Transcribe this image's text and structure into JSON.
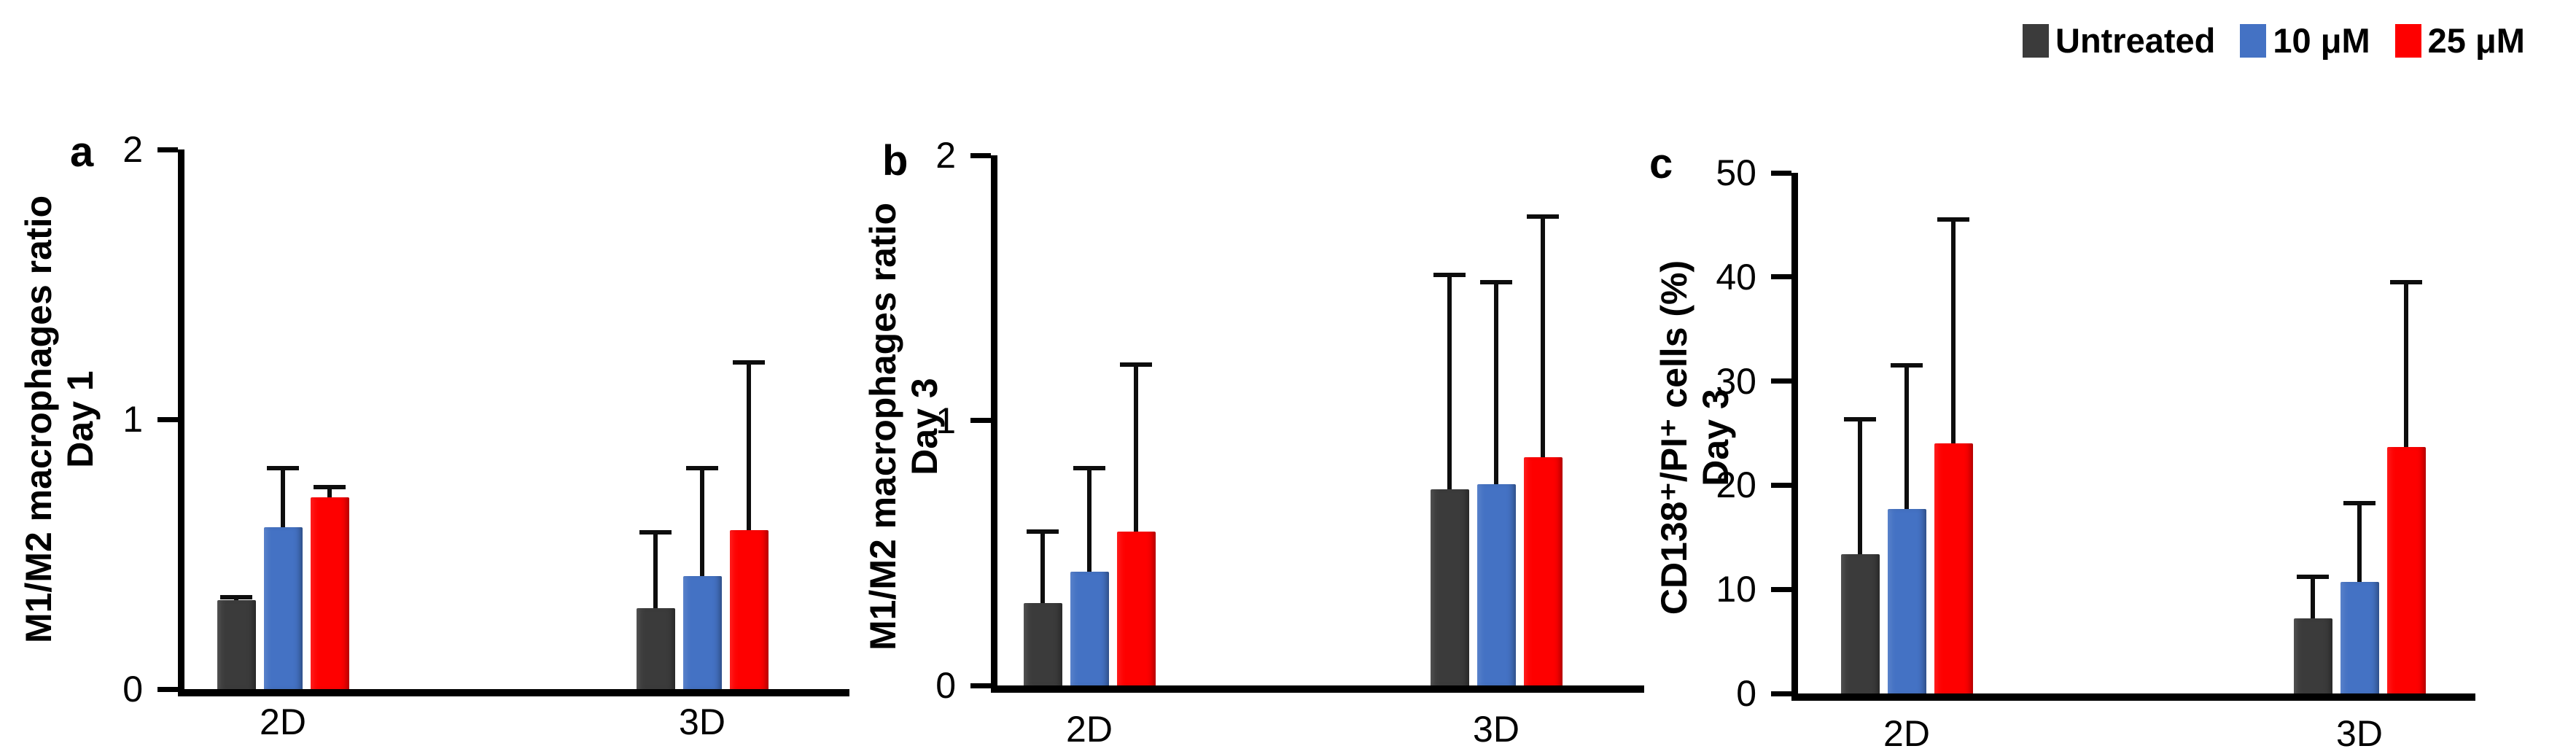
{
  "legend": {
    "position": "top-right",
    "items": [
      {
        "label": "Untreated",
        "color": "#3b3b3b"
      },
      {
        "label": "10 μM",
        "color": "#4472c4"
      },
      {
        "label": "25 μM",
        "color": "#fe0000"
      }
    ]
  },
  "chart_data": [
    {
      "type": "bar",
      "panel": "a",
      "ylabel_line1": "M1/M2 macrophages ratio",
      "ylabel_line2": "Day 1",
      "xlabel": "",
      "categories": [
        "2D",
        "3D"
      ],
      "series": [
        {
          "name": "Untreated",
          "color": "#3b3b3b",
          "values": [
            0.33,
            0.3
          ],
          "err_up": [
            0.01,
            0.28
          ]
        },
        {
          "name": "10 μM",
          "color": "#4472c4",
          "values": [
            0.6,
            0.42
          ],
          "err_up": [
            0.22,
            0.4
          ]
        },
        {
          "name": "25 μM",
          "color": "#fe0000",
          "values": [
            0.71,
            0.59
          ],
          "err_up": [
            0.04,
            0.62
          ]
        }
      ],
      "ylim": [
        0,
        2
      ],
      "yticks": [
        0,
        1,
        2
      ],
      "grid": false,
      "error_bars": "upper only"
    },
    {
      "type": "bar",
      "panel": "b",
      "ylabel_line1": "M1/M2 macrophages ratio",
      "ylabel_line2": "Day 3",
      "xlabel": "",
      "categories": [
        "2D",
        "3D"
      ],
      "series": [
        {
          "name": "Untreated",
          "color": "#3b3b3b",
          "values": [
            0.31,
            0.74
          ],
          "err_up": [
            0.27,
            0.81
          ]
        },
        {
          "name": "10 μM",
          "color": "#4472c4",
          "values": [
            0.43,
            0.76
          ],
          "err_up": [
            0.39,
            0.76
          ]
        },
        {
          "name": "25 μM",
          "color": "#fe0000",
          "values": [
            0.58,
            0.86
          ],
          "err_up": [
            0.63,
            0.91
          ]
        }
      ],
      "ylim": [
        0,
        2
      ],
      "yticks": [
        0,
        1,
        2
      ],
      "grid": false,
      "error_bars": "upper only"
    },
    {
      "type": "bar",
      "panel": "c",
      "ylabel_line1": "CD138⁺/PI⁺ cells (%)",
      "ylabel_line2": "Day 3",
      "xlabel": "",
      "categories": [
        "2D",
        "3D"
      ],
      "series": [
        {
          "name": "Untreated",
          "color": "#3b3b3b",
          "values": [
            13.4,
            7.2
          ],
          "err_up": [
            12.9,
            4.0
          ]
        },
        {
          "name": "10 μM",
          "color": "#4472c4",
          "values": [
            17.7,
            10.7
          ],
          "err_up": [
            13.8,
            7.6
          ]
        },
        {
          "name": "25 μM",
          "color": "#fe0000",
          "values": [
            24.0,
            23.7
          ],
          "err_up": [
            21.5,
            15.8
          ]
        }
      ],
      "ylim": [
        0,
        50
      ],
      "yticks": [
        0,
        10,
        20,
        30,
        40,
        50
      ],
      "grid": false,
      "error_bars": "upper only"
    }
  ]
}
